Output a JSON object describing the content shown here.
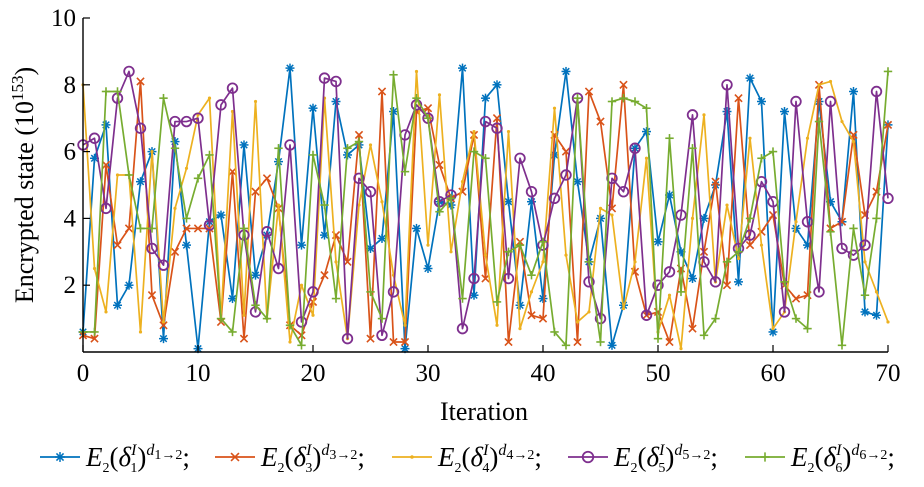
{
  "chart_data": {
    "type": "line",
    "xlabel": "Iteration",
    "ylabel_base": "Encrypted state (10",
    "ylabel_exp": "153",
    "ylabel_close": ")",
    "xlim": [
      0,
      70
    ],
    "ylim": [
      0,
      10
    ],
    "xticks": [
      0,
      10,
      20,
      30,
      40,
      50,
      60,
      70
    ],
    "yticks": [
      2,
      4,
      6,
      8,
      10
    ],
    "grid": false,
    "legend_position": "bottom",
    "x": [
      0,
      1,
      2,
      3,
      4,
      5,
      6,
      7,
      8,
      9,
      10,
      11,
      12,
      13,
      14,
      15,
      16,
      17,
      18,
      19,
      20,
      21,
      22,
      23,
      24,
      25,
      26,
      27,
      28,
      29,
      30,
      31,
      32,
      33,
      34,
      35,
      36,
      37,
      38,
      39,
      40,
      41,
      42,
      43,
      44,
      45,
      46,
      47,
      48,
      49,
      50,
      51,
      52,
      53,
      54,
      55,
      56,
      57,
      58,
      59,
      60,
      61,
      62,
      63,
      64,
      65,
      66,
      67,
      68,
      69,
      70
    ],
    "series": [
      {
        "name_base": "E",
        "name_sub": "2",
        "name_delta": "δ",
        "name_up": "I",
        "name_idx": "1",
        "name_d": "d",
        "name_d_sub": "1→2",
        "color": "#0072BD",
        "marker": "asterisk",
        "values": [
          0.6,
          5.8,
          6.8,
          1.4,
          2.0,
          5.1,
          6.0,
          0.4,
          6.3,
          3.2,
          0.1,
          3.9,
          4.1,
          1.6,
          6.2,
          2.3,
          3.5,
          5.7,
          8.5,
          3.2,
          7.3,
          3.5,
          7.5,
          5.9,
          6.2,
          3.1,
          3.4,
          7.2,
          0.1,
          3.7,
          2.5,
          4.5,
          4.4,
          8.5,
          1.7,
          7.6,
          8.0,
          4.5,
          1.4,
          4.5,
          1.6,
          5.9,
          8.4,
          5.1,
          2.7,
          4.0,
          0.2,
          1.4,
          6.1,
          6.6,
          3.3,
          4.7,
          3.0,
          2.2,
          4.0,
          5.0,
          7.2,
          2.1,
          8.2,
          7.5,
          0.6,
          7.2,
          3.7,
          3.2,
          7.5,
          4.5,
          3.9,
          7.8,
          1.2,
          1.1,
          6.8
        ]
      },
      {
        "name_base": "E",
        "name_sub": "2",
        "name_delta": "δ",
        "name_up": "I",
        "name_idx": "3",
        "name_d": "d",
        "name_d_sub": "3→2",
        "color": "#D95319",
        "marker": "cross",
        "values": [
          0.5,
          0.4,
          5.6,
          3.2,
          3.7,
          8.1,
          1.7,
          0.8,
          3.0,
          3.7,
          3.7,
          3.7,
          0.9,
          5.4,
          0.4,
          4.8,
          5.2,
          4.3,
          0.8,
          0.5,
          1.5,
          2.3,
          3.5,
          2.7,
          6.5,
          0.4,
          7.8,
          0.3,
          0.3,
          7.2,
          7.3,
          5.6,
          4.6,
          4.8,
          6.5,
          2.2,
          7.0,
          0.3,
          3.3,
          1.1,
          1.0,
          6.5,
          6.0,
          0.3,
          7.8,
          6.9,
          4.3,
          8.0,
          2.4,
          1.1,
          1.2,
          0.3,
          2.5,
          0.7,
          3.0,
          5.1,
          2.0,
          7.6,
          3.2,
          3.6,
          4.1,
          2.0,
          1.6,
          1.7,
          8.0,
          3.7,
          3.9,
          6.5,
          4.1,
          4.8,
          6.8
        ]
      },
      {
        "name_base": "E",
        "name_sub": "2",
        "name_delta": "δ",
        "name_up": "I",
        "name_idx": "4",
        "name_d": "d",
        "name_d_sub": "4→2",
        "color": "#EDB120",
        "marker": "dot",
        "values": [
          8.0,
          2.5,
          1.2,
          5.3,
          5.3,
          0.6,
          6.0,
          0.9,
          4.3,
          5.5,
          7.1,
          7.6,
          1.0,
          7.2,
          1.1,
          7.5,
          1.0,
          4.4,
          0.3,
          2.0,
          1.1,
          7.6,
          2.7,
          0.4,
          4.4,
          6.2,
          4.5,
          2.3,
          0.8,
          8.4,
          3.2,
          7.7,
          3.0,
          5.1,
          6.6,
          2.9,
          0.8,
          6.6,
          0.7,
          1.8,
          2.7,
          7.3,
          2.9,
          0.9,
          1.2,
          4.3,
          4.1,
          1.3,
          2.7,
          5.8,
          0.6,
          1.7,
          0.1,
          4.0,
          7.1,
          2.1,
          4.4,
          2.8,
          6.4,
          3.2,
          0.7,
          1.2,
          3.9,
          6.4,
          8.0,
          8.1,
          6.9,
          6.3,
          2.7,
          1.8,
          0.9
        ]
      },
      {
        "name_base": "E",
        "name_sub": "2",
        "name_delta": "δ",
        "name_up": "I",
        "name_idx": "5",
        "name_d": "d",
        "name_d_sub": "5→2",
        "color": "#7E2F8E",
        "marker": "circle",
        "values": [
          6.2,
          6.4,
          4.3,
          7.6,
          8.4,
          6.7,
          3.1,
          2.6,
          6.9,
          6.9,
          7.0,
          3.8,
          7.4,
          7.9,
          3.5,
          1.2,
          3.6,
          2.5,
          6.2,
          0.9,
          1.8,
          8.2,
          8.1,
          0.4,
          5.2,
          4.8,
          0.5,
          1.8,
          6.5,
          7.4,
          7.0,
          4.5,
          4.7,
          0.7,
          2.2,
          6.9,
          6.7,
          2.2,
          5.8,
          4.8,
          3.2,
          4.6,
          5.3,
          7.6,
          2.1,
          1.0,
          5.2,
          4.8,
          6.1,
          1.1,
          2.0,
          2.4,
          4.1,
          7.1,
          2.7,
          2.1,
          8.0,
          3.1,
          3.5,
          5.1,
          4.5,
          1.2,
          7.5,
          3.9,
          1.8,
          7.5,
          3.1,
          2.9,
          3.2,
          7.8,
          4.6
        ]
      },
      {
        "name_base": "E",
        "name_sub": "2",
        "name_delta": "δ",
        "name_up": "I",
        "name_idx": "6",
        "name_d": "d",
        "name_d_sub": "6→2",
        "color": "#77AC30",
        "marker": "plus",
        "values": [
          0.6,
          0.6,
          7.8,
          7.8,
          5.3,
          3.7,
          3.7,
          7.6,
          6.1,
          4.0,
          5.2,
          5.9,
          1.0,
          0.6,
          3.7,
          1.4,
          1.0,
          6.1,
          0.8,
          0.2,
          5.9,
          4.4,
          1.6,
          6.1,
          6.3,
          1.8,
          1.0,
          8.3,
          5.4,
          7.6,
          7.0,
          4.2,
          4.6,
          1.6,
          6.0,
          5.8,
          1.5,
          3.0,
          3.2,
          2.3,
          3.3,
          0.6,
          0.2,
          7.6,
          2.7,
          0.3,
          7.5,
          7.6,
          7.5,
          7.3,
          0.4,
          6.4,
          1.8,
          6.1,
          0.5,
          1.0,
          2.7,
          3.0,
          4.0,
          5.8,
          6.0,
          2.1,
          1.0,
          0.7,
          6.9,
          3.6,
          0.2,
          3.7,
          1.7,
          4.0,
          8.4
        ]
      }
    ]
  }
}
